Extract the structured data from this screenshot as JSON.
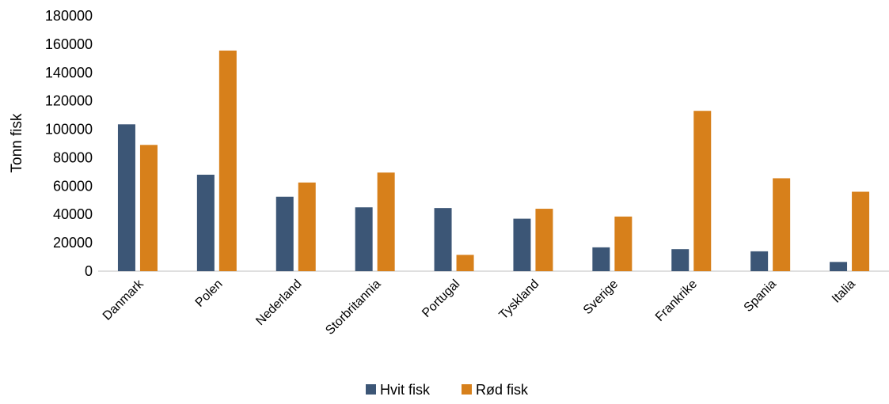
{
  "chart_data": {
    "type": "bar",
    "title": "",
    "xlabel": "",
    "ylabel": "Tonn fisk",
    "ylim": [
      0,
      180000
    ],
    "yticks": [
      0,
      20000,
      40000,
      60000,
      80000,
      100000,
      120000,
      140000,
      160000,
      180000
    ],
    "grid": false,
    "legend_position": "bottom",
    "categories": [
      "Danmark",
      "Polen",
      "Nederland",
      "Storbritannia",
      "Portugal",
      "Tyskland",
      "Sverige",
      "Frankrike",
      "Spania",
      "Italia"
    ],
    "series": [
      {
        "name": "Hvit fisk",
        "color": "#3c5676",
        "values": [
          103500,
          68000,
          52500,
          45000,
          44500,
          37000,
          16800,
          15500,
          14000,
          6500
        ]
      },
      {
        "name": "Rød fisk",
        "color": "#d7801b",
        "values": [
          89000,
          155500,
          62500,
          69500,
          11500,
          44000,
          38500,
          113000,
          65500,
          56000
        ]
      }
    ]
  }
}
